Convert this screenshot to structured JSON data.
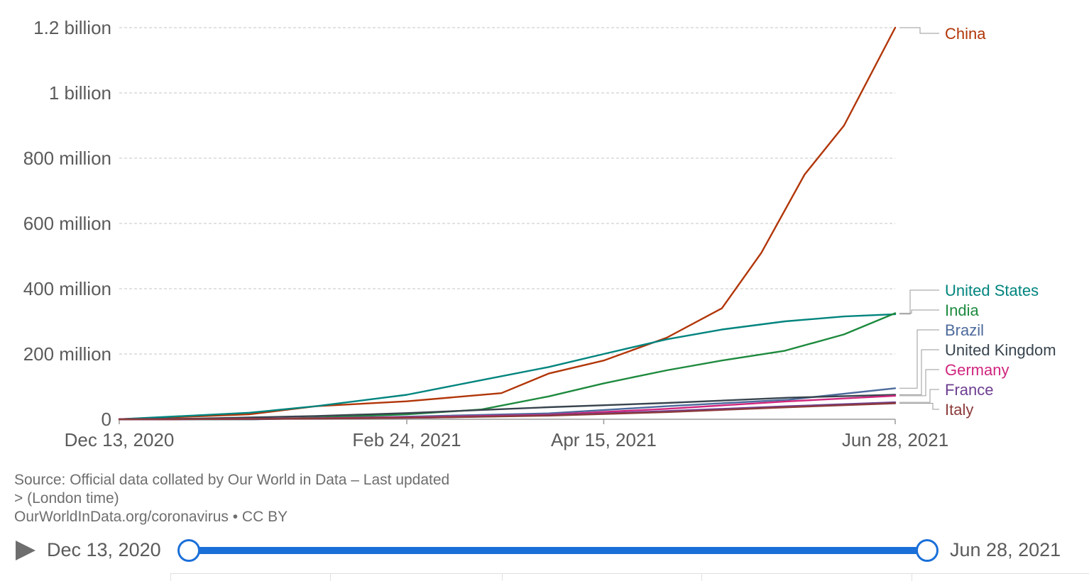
{
  "chart_data": {
    "type": "line",
    "x_ticks": [
      "Dec 13, 2020",
      "Feb 24, 2021",
      "Apr 15, 2021",
      "Jun 28, 2021"
    ],
    "x_range": [
      "2020-12-13",
      "2021-06-28"
    ],
    "y_ticks": [
      "0",
      "200 million",
      "400 million",
      "600 million",
      "800 million",
      "1 billion",
      "1.2 billion"
    ],
    "y_range": [
      0,
      1200000000
    ],
    "grid": "horizontal dashed",
    "legend_placement": "right, end of lines",
    "series": [
      {
        "name": "China",
        "color": "#b13507",
        "x": [
          "2020-12-13",
          "2021-01-15",
          "2021-02-01",
          "2021-02-24",
          "2021-03-20",
          "2021-04-01",
          "2021-04-15",
          "2021-05-01",
          "2021-05-15",
          "2021-05-25",
          "2021-06-05",
          "2021-06-15",
          "2021-06-28"
        ],
        "y": [
          0,
          15000000,
          40000000,
          55000000,
          80000000,
          140000000,
          180000000,
          250000000,
          340000000,
          510000000,
          750000000,
          900000000,
          1200000000
        ]
      },
      {
        "name": "United States",
        "color": "#00847e",
        "x": [
          "2020-12-13",
          "2021-01-15",
          "2021-02-01",
          "2021-02-24",
          "2021-03-15",
          "2021-04-01",
          "2021-04-15",
          "2021-05-01",
          "2021-05-15",
          "2021-05-31",
          "2021-06-15",
          "2021-06-28"
        ],
        "y": [
          0,
          20000000,
          40000000,
          75000000,
          120000000,
          160000000,
          200000000,
          245000000,
          275000000,
          300000000,
          315000000,
          322000000
        ]
      },
      {
        "name": "India",
        "color": "#1d8a3e",
        "x": [
          "2020-12-13",
          "2021-01-16",
          "2021-02-01",
          "2021-02-24",
          "2021-03-15",
          "2021-04-01",
          "2021-04-15",
          "2021-05-01",
          "2021-05-15",
          "2021-05-31",
          "2021-06-15",
          "2021-06-28"
        ],
        "y": [
          0,
          0,
          5000000,
          15000000,
          30000000,
          70000000,
          110000000,
          150000000,
          180000000,
          210000000,
          260000000,
          325000000
        ]
      },
      {
        "name": "Brazil",
        "color": "#4c6a9c",
        "x": [
          "2020-12-13",
          "2021-01-17",
          "2021-02-24",
          "2021-04-01",
          "2021-05-01",
          "2021-06-01",
          "2021-06-28"
        ],
        "y": [
          0,
          0,
          8000000,
          18000000,
          40000000,
          60000000,
          95000000
        ]
      },
      {
        "name": "United Kingdom",
        "color": "#38444e",
        "x": [
          "2020-12-13",
          "2021-01-01",
          "2021-02-01",
          "2021-02-24",
          "2021-04-01",
          "2021-05-01",
          "2021-06-01",
          "2021-06-28"
        ],
        "y": [
          0,
          2000000,
          10000000,
          19000000,
          37000000,
          50000000,
          66000000,
          75000000
        ]
      },
      {
        "name": "Germany",
        "color": "#d0267e",
        "x": [
          "2020-12-13",
          "2020-12-27",
          "2021-02-01",
          "2021-03-01",
          "2021-04-01",
          "2021-05-01",
          "2021-06-01",
          "2021-06-28"
        ],
        "y": [
          0,
          0,
          3000000,
          7000000,
          14000000,
          32000000,
          55000000,
          72000000
        ]
      },
      {
        "name": "France",
        "color": "#6d3e91",
        "x": [
          "2020-12-13",
          "2020-12-27",
          "2021-02-01",
          "2021-03-01",
          "2021-04-01",
          "2021-05-01",
          "2021-06-01",
          "2021-06-28"
        ],
        "y": [
          0,
          0,
          2000000,
          5000000,
          12000000,
          25000000,
          40000000,
          52000000
        ]
      },
      {
        "name": "Italy",
        "color": "#8c3a3a",
        "x": [
          "2020-12-13",
          "2020-12-27",
          "2021-02-01",
          "2021-03-01",
          "2021-04-01",
          "2021-05-01",
          "2021-06-01",
          "2021-06-28"
        ],
        "y": [
          0,
          0,
          2000000,
          5000000,
          11000000,
          22000000,
          37000000,
          49000000
        ]
      }
    ]
  },
  "source": {
    "line1": "Source: Official data collated by Our World in Data – Last updated",
    "line2": "> (London time)",
    "line3": "OurWorldInData.org/coronavirus • CC BY"
  },
  "timeline": {
    "start_label": "Dec 13, 2020",
    "end_label": "Jun 28, 2021",
    "start_fraction": 0,
    "end_fraction": 1
  },
  "colors": {
    "accent": "#1a6fd8",
    "grid": "#d0d0d0",
    "axis": "#9a9a9a"
  }
}
